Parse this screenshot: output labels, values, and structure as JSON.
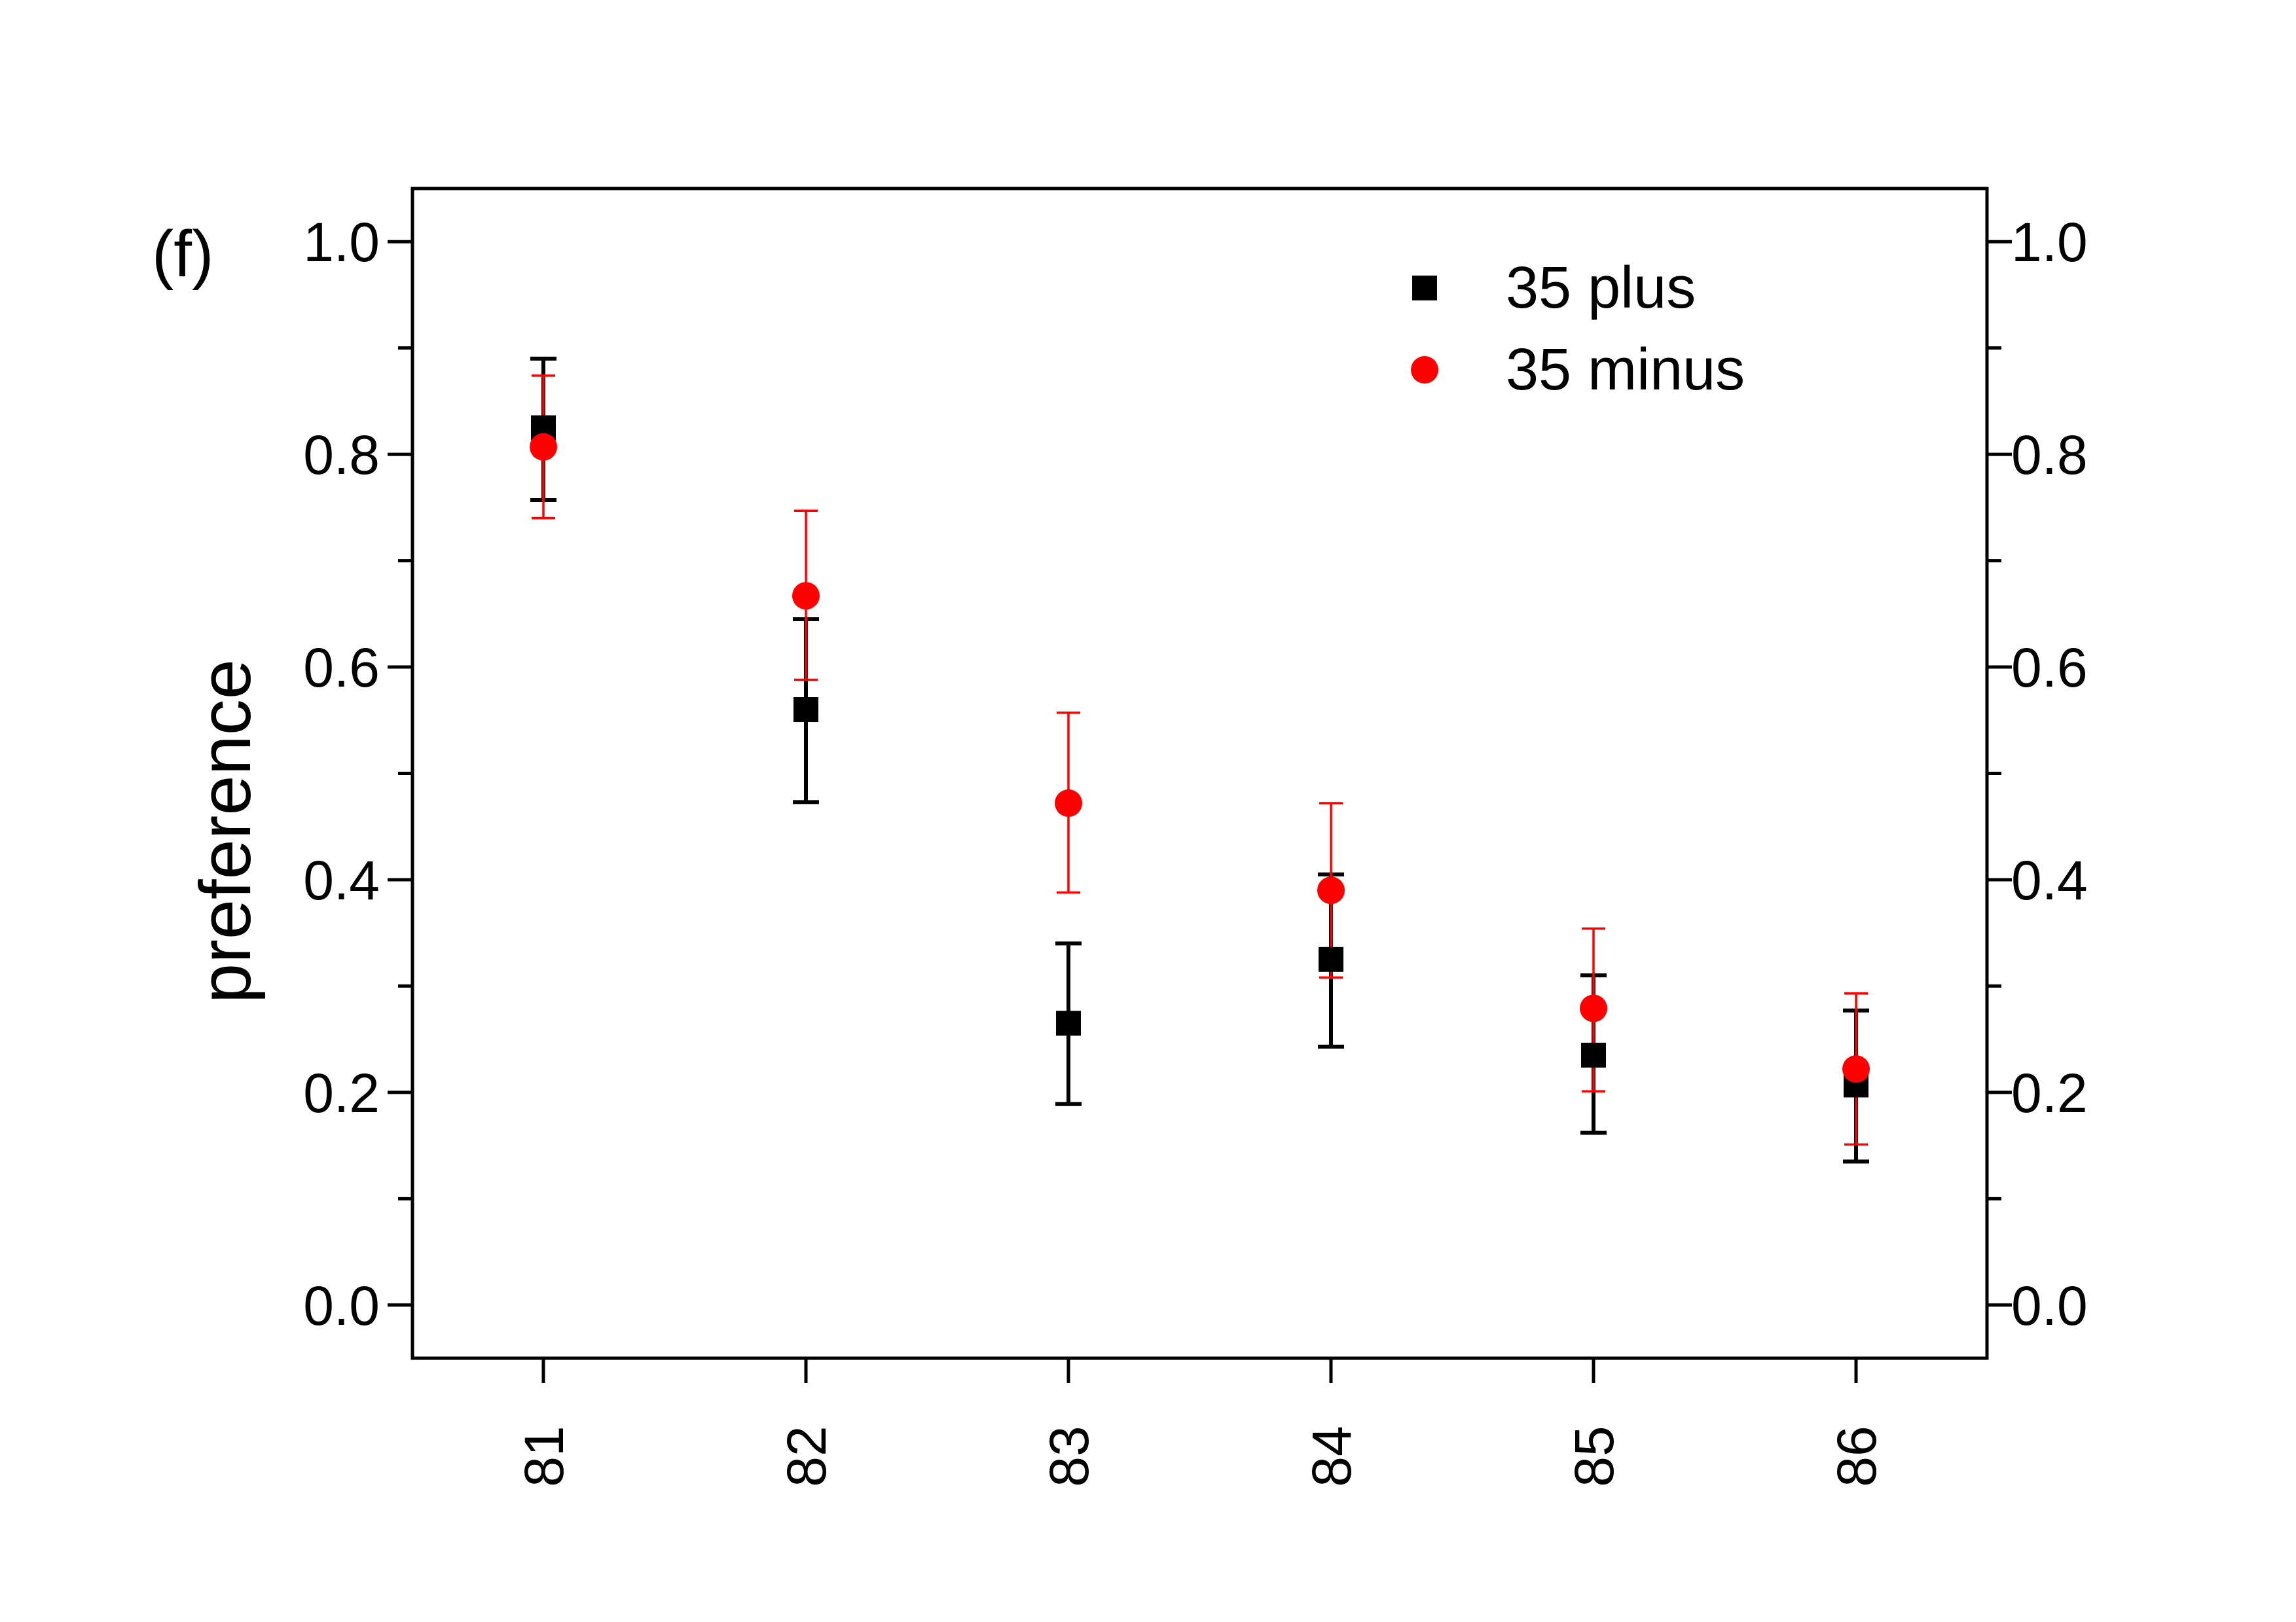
{
  "panel_label": "(f)",
  "chart_data": {
    "type": "scatter",
    "title": "",
    "xlabel": "",
    "ylabel": "preference",
    "categories": [
      "81",
      "82",
      "83",
      "84",
      "85",
      "86"
    ],
    "ylim": [
      -0.05,
      1.05
    ],
    "yticks": [
      "0.0",
      "0.2",
      "0.4",
      "0.6",
      "0.8",
      "1.0"
    ],
    "ytick_values": [
      0.0,
      0.2,
      0.4,
      0.6,
      0.8,
      1.0
    ],
    "right_axis_mirrored": true,
    "grid": false,
    "legend_position": "top-right",
    "series": [
      {
        "name": "35 plus",
        "marker": "square",
        "color": "#000000",
        "values": [
          0.825,
          0.56,
          0.265,
          0.325,
          0.235,
          0.207
        ],
        "error_low": [
          0.757,
          0.473,
          0.189,
          0.243,
          0.162,
          0.135
        ],
        "error_high": [
          0.89,
          0.645,
          0.34,
          0.405,
          0.31,
          0.277
        ]
      },
      {
        "name": "35 minus",
        "marker": "circle",
        "color": "#ff0000",
        "values": [
          0.807,
          0.667,
          0.472,
          0.39,
          0.279,
          0.222
        ],
        "error_low": [
          0.74,
          0.588,
          0.388,
          0.308,
          0.201,
          0.151
        ],
        "error_high": [
          0.874,
          0.747,
          0.557,
          0.472,
          0.354,
          0.293
        ]
      }
    ]
  }
}
